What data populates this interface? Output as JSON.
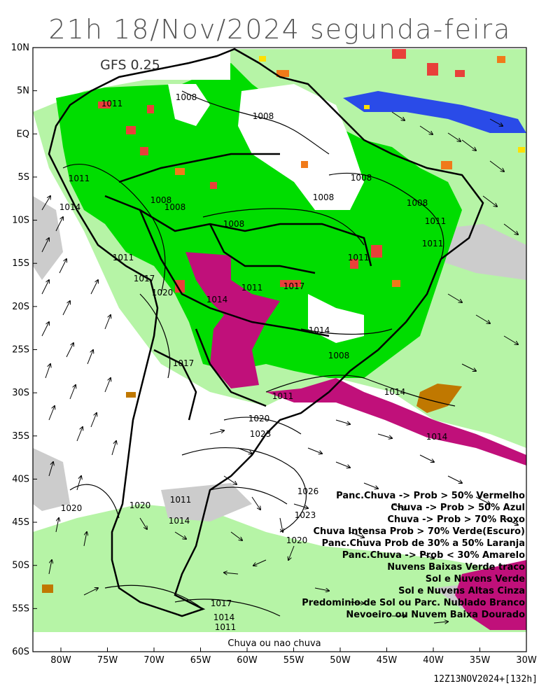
{
  "title": "21h 18/Nov/2024 segunda-feira",
  "model_label": "GFS 0.25",
  "bottom_label": "Chuva ou nao chuva",
  "run_label": "12Z13NOV2024+[132h]",
  "lat_ticks": [
    "10N",
    "5N",
    "EQ",
    "5S",
    "10S",
    "15S",
    "20S",
    "25S",
    "30S",
    "35S",
    "40S",
    "45S",
    "50S",
    "55S",
    "60S"
  ],
  "lon_ticks": [
    "80W",
    "75W",
    "70W",
    "65W",
    "60W",
    "55W",
    "50W",
    "45W",
    "40W",
    "35W",
    "30W"
  ],
  "isobar_labels": [
    "1011",
    "1008",
    "1008",
    "1008",
    "1008",
    "1011",
    "1014",
    "1008",
    "1008",
    "1008",
    "1008",
    "1011",
    "1011",
    "1011",
    "1011",
    "1017",
    "1020",
    "1014",
    "1011",
    "1017",
    "1014",
    "1008",
    "1011",
    "1017",
    "1014",
    "1020",
    "1023",
    "1026",
    "1023",
    "1020",
    "1014",
    "1011",
    "1020",
    "1014",
    "1017",
    "1014",
    "1011",
    "1020"
  ],
  "legend": [
    {
      "text": "Panc.Chuva -> Prob > 50% Vermelho",
      "color": "#e8403a"
    },
    {
      "text": "Chuva -> Prob > 50% Azul",
      "color": "#2a4be8"
    },
    {
      "text": "Chuva -> Prob > 70% Roxo",
      "color": "#c0107a"
    },
    {
      "text": "Chuva Intensa Prob > 70% Verde(Escuro)",
      "color": "#00cc00"
    },
    {
      "text": "Panc.Chuva Prob de 30% a 50% Laranja",
      "color": "#f07a1a"
    },
    {
      "text": "Panc.Chuva -> Prob < 30% Amarelo",
      "color": "#ffe000"
    },
    {
      "text": "Nuvens Baixas Verde traco",
      "color": "#80e080"
    },
    {
      "text": "Sol e Nuvens Verde",
      "color": "#b6f4a6"
    },
    {
      "text": "Sol e Nuvens Altas Cinza",
      "color": "#cccccc"
    },
    {
      "text": "Predominio de Sol ou Parc. Nublado Branco",
      "color": "#ffffff"
    },
    {
      "text": "Nevoeiro ou Nuvem Baixa Dourado",
      "color": "#c07800"
    }
  ]
}
